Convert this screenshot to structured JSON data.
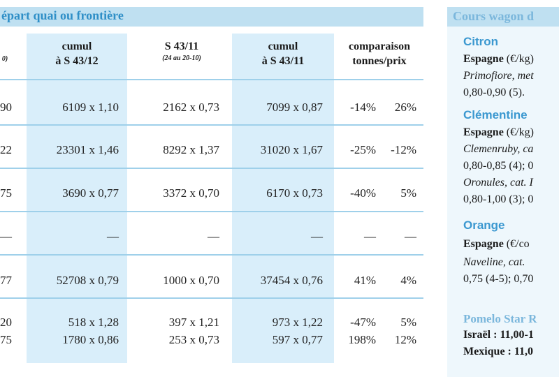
{
  "table": {
    "title": "épart quai ou frontière",
    "headers": {
      "c0_sub": "0)",
      "c1": [
        "cumul",
        "à S 43/12"
      ],
      "c2": [
        "S 43/11"
      ],
      "c2_sub": "(24 au 20-10)",
      "c3": [
        "cumul",
        "à S 43/11"
      ],
      "c4": [
        "comparaison",
        "tonnes/prix"
      ]
    },
    "rows": [
      {
        "c0": "90",
        "c1": "6109 x 1,10",
        "c2": "2162 x 0,73",
        "c3": "7099 x 0,87",
        "t": "-14%",
        "p": "26%"
      },
      {
        "c0": "22",
        "c1": "23301 x 1,46",
        "c2": "8292 x 1,37",
        "c3": "31020 x 1,67",
        "t": "-25%",
        "p": "-12%"
      },
      {
        "c0": "75",
        "c1": "3690 x 0,77",
        "c2": "3372 x 0,70",
        "c3": "6170 x 0,73",
        "t": "-40%",
        "p": "5%"
      },
      {
        "c0": "—",
        "c1": "—",
        "c2": "—",
        "c3": "—",
        "t": "—",
        "p": "—"
      },
      {
        "c0": "77",
        "c1": "52708 x 0,79",
        "c2": "1000 x 0,70",
        "c3": "37454 x 0,76",
        "t": "41%",
        "p": "4%"
      },
      {
        "c0": "20",
        "c1": "518 x 1,28",
        "c2": "397 x 1,21",
        "c3": "973 x 1,22",
        "t": "-47%",
        "p": "5%"
      },
      {
        "c0": "75",
        "c1": "1780 x 0,86",
        "c2": "253 x 0,73",
        "c3": "597 x 0,77",
        "t": "198%",
        "p": "12%"
      }
    ]
  },
  "panel": {
    "title": "Cours wagon d",
    "lines": [
      {
        "text": "Citron",
        "kind": "fruit"
      },
      {
        "text": "Espagne",
        "rest": " (€/kg)",
        "kind": "origin"
      },
      {
        "text": "Primofiore, met",
        "kind": "italic"
      },
      {
        "text": "0,80-0,90 (5).",
        "kind": "plain"
      },
      {
        "text": "Clémentine",
        "kind": "fruit"
      },
      {
        "text": "Espagne",
        "rest": " (€/kg)",
        "kind": "origin"
      },
      {
        "text": "Clemenruby, ca",
        "kind": "italic"
      },
      {
        "text": "0,80-0,85 (4); 0",
        "kind": "plain"
      },
      {
        "text": "Oronules, cat. I",
        "kind": "italic"
      },
      {
        "text": "0,80-1,00 (3); 0",
        "kind": "plain"
      },
      {
        "text": "Orange",
        "kind": "fruit"
      },
      {
        "text": "Espagne",
        "rest": " (€/co",
        "kind": "origin"
      },
      {
        "text": "Naveline,  cat.",
        "kind": "italic"
      },
      {
        "text": "0,75 (4-5); 0,70",
        "kind": "plain"
      },
      {
        "text": "Pomelo Star R",
        "kind": "pomelo"
      },
      {
        "text": "Israël",
        "rest": " : 11,00-1",
        "kind": "bold"
      },
      {
        "text": "Mexique",
        "rest": " : 11,0",
        "kind": "bold"
      }
    ]
  }
}
